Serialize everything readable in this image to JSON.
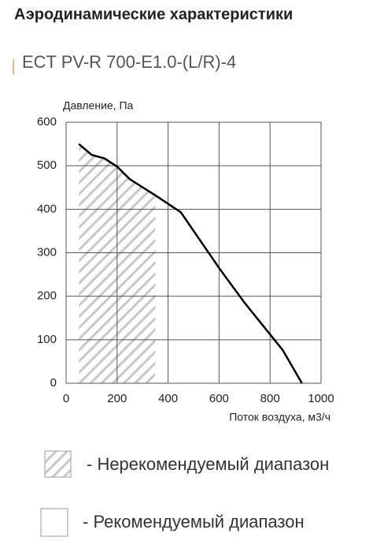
{
  "header": {
    "title": "Аэродинамические характеристики",
    "model": "ECT PV-R 700-E1.0-(L/R)-4"
  },
  "chart_data": {
    "type": "line",
    "y_label": "Давление, Па",
    "x_label": "Поток воздуха, м3/ч",
    "x": [
      50,
      100,
      150,
      200,
      250,
      350,
      450,
      600,
      700,
      850,
      925
    ],
    "series": [
      {
        "color": "#000000",
        "values": [
          550,
          525,
          517,
          498,
          469,
          432,
          393,
          265,
          185,
          76,
          0
        ]
      }
    ],
    "xlim": [
      0,
      1000
    ],
    "xticks": [
      0,
      200,
      400,
      600,
      800,
      1000
    ],
    "ylim": [
      0,
      600
    ],
    "yticks": [
      0,
      100,
      200,
      300,
      400,
      500,
      600
    ],
    "grid": true,
    "unrecommended_range": [
      50,
      350
    ]
  },
  "legend": [
    "- Нерекомендуемый диапазон",
    "- Рекомендуемый диапазон"
  ]
}
